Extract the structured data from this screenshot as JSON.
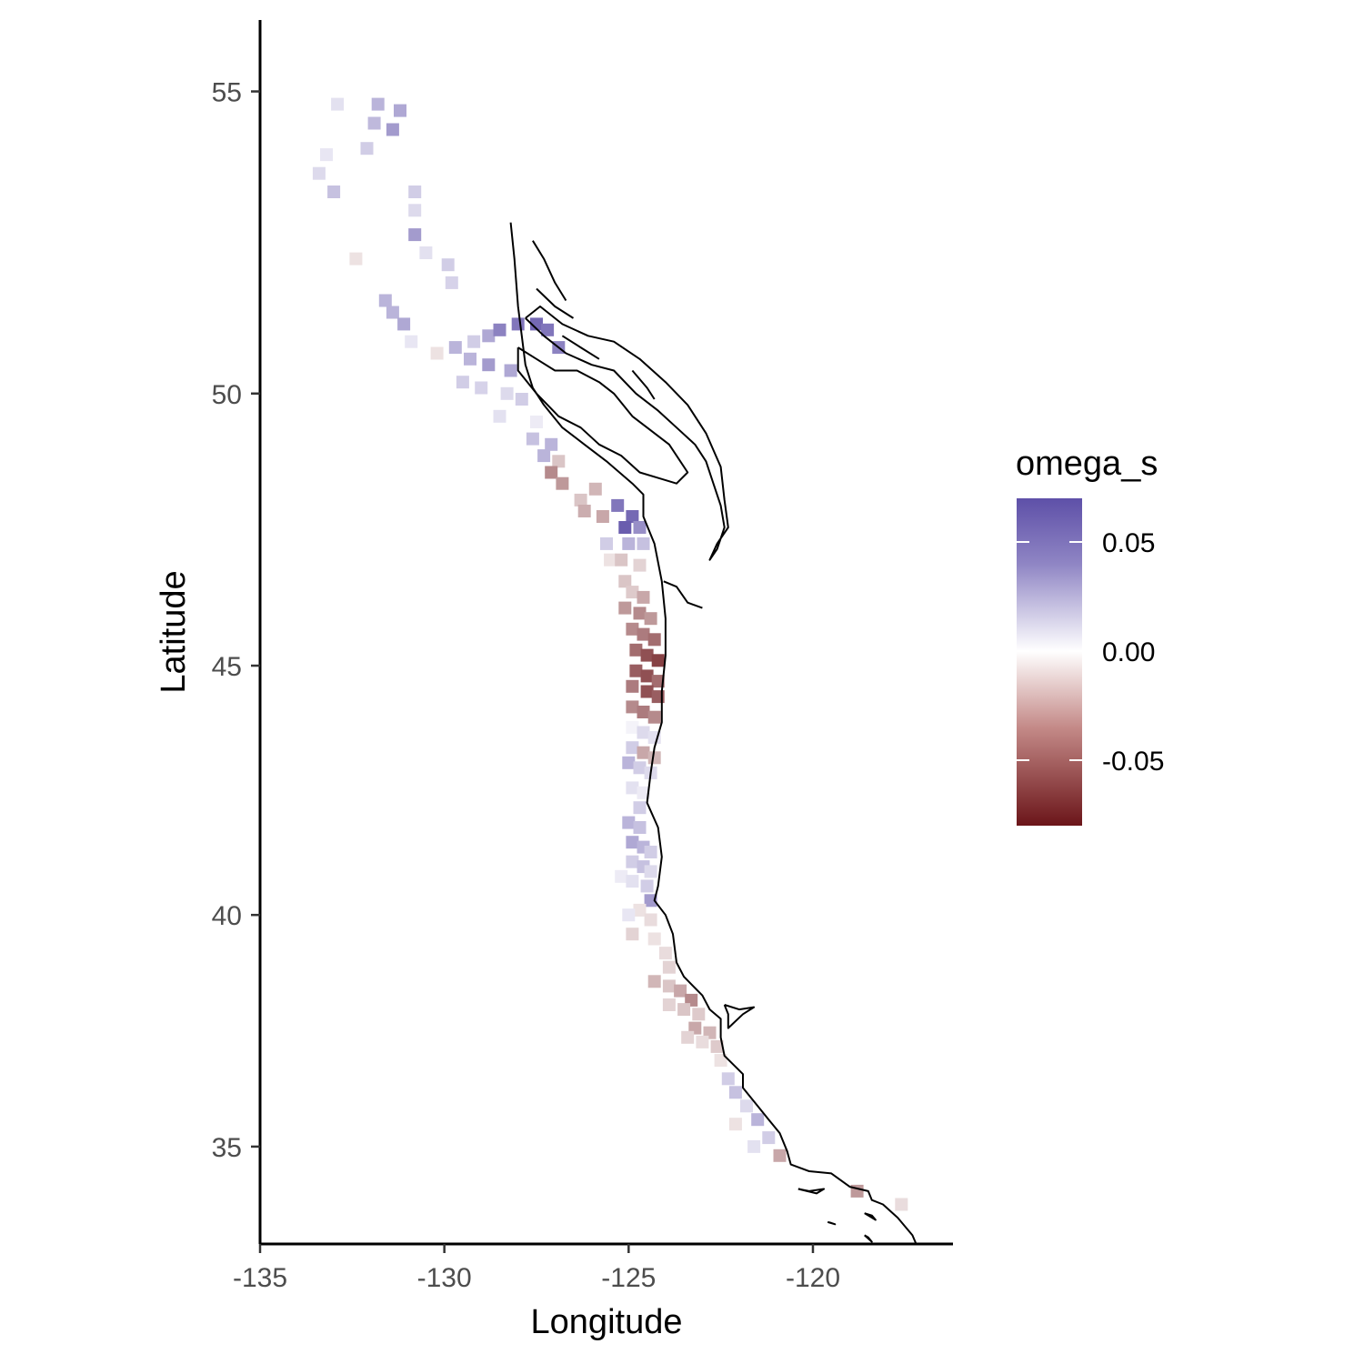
{
  "chart_data": {
    "type": "heatmap",
    "xlabel": "Longitude",
    "ylabel": "Latitude",
    "xlim": [
      -135,
      -116.2
    ],
    "ylim": [
      32.8,
      56.1
    ],
    "x_ticks": [
      -135,
      -130,
      -125,
      -120
    ],
    "x_tick_labels": [
      "-135",
      "-130",
      "-125",
      "-120"
    ],
    "y_ticks": [
      35,
      40,
      45,
      50,
      55
    ],
    "y_tick_labels": [
      "35",
      "40",
      "45",
      "50",
      "55"
    ],
    "grid": false,
    "legend": {
      "title": "omega_s",
      "position": "right",
      "min": -0.08,
      "max": 0.07,
      "breaks": [
        0.05,
        0.0,
        -0.05
      ],
      "break_labels": [
        "0.05",
        "0.00",
        "-0.05"
      ],
      "colors": {
        "high": "#5e50a8",
        "mid": "#ffffff",
        "low": "#6b1519"
      }
    },
    "coastline_color": "#000000",
    "cells": [
      {
        "lon": -132.9,
        "lat": 54.8,
        "v": 0.012
      },
      {
        "lon": -131.8,
        "lat": 54.8,
        "v": 0.03
      },
      {
        "lon": -131.2,
        "lat": 54.7,
        "v": 0.035
      },
      {
        "lon": -131.9,
        "lat": 54.5,
        "v": 0.028
      },
      {
        "lon": -131.4,
        "lat": 54.4,
        "v": 0.04
      },
      {
        "lon": -132.1,
        "lat": 54.1,
        "v": 0.02
      },
      {
        "lon": -133.2,
        "lat": 54.0,
        "v": 0.01
      },
      {
        "lon": -133.4,
        "lat": 53.7,
        "v": 0.015
      },
      {
        "lon": -133.0,
        "lat": 53.4,
        "v": 0.025
      },
      {
        "lon": -130.8,
        "lat": 53.4,
        "v": 0.02
      },
      {
        "lon": -130.8,
        "lat": 53.1,
        "v": 0.015
      },
      {
        "lon": -130.8,
        "lat": 52.7,
        "v": 0.04
      },
      {
        "lon": -130.5,
        "lat": 52.4,
        "v": 0.012
      },
      {
        "lon": -129.9,
        "lat": 52.2,
        "v": 0.02
      },
      {
        "lon": -129.8,
        "lat": 51.9,
        "v": 0.018
      },
      {
        "lon": -132.4,
        "lat": 52.3,
        "v": -0.01
      },
      {
        "lon": -131.6,
        "lat": 51.6,
        "v": 0.03
      },
      {
        "lon": -131.4,
        "lat": 51.4,
        "v": 0.03
      },
      {
        "lon": -131.1,
        "lat": 51.2,
        "v": 0.035
      },
      {
        "lon": -130.9,
        "lat": 50.9,
        "v": 0.01
      },
      {
        "lon": -130.2,
        "lat": 50.7,
        "v": -0.01
      },
      {
        "lon": -129.2,
        "lat": 50.9,
        "v": 0.02
      },
      {
        "lon": -128.8,
        "lat": 51.0,
        "v": 0.035
      },
      {
        "lon": -128.5,
        "lat": 51.1,
        "v": 0.05
      },
      {
        "lon": -128.0,
        "lat": 51.2,
        "v": 0.055
      },
      {
        "lon": -127.5,
        "lat": 51.2,
        "v": 0.06
      },
      {
        "lon": -127.2,
        "lat": 51.1,
        "v": 0.055
      },
      {
        "lon": -126.9,
        "lat": 50.8,
        "v": 0.05
      },
      {
        "lon": -129.7,
        "lat": 50.8,
        "v": 0.03
      },
      {
        "lon": -129.3,
        "lat": 50.6,
        "v": 0.03
      },
      {
        "lon": -128.8,
        "lat": 50.5,
        "v": 0.04
      },
      {
        "lon": -128.2,
        "lat": 50.4,
        "v": 0.035
      },
      {
        "lon": -129.5,
        "lat": 50.2,
        "v": 0.02
      },
      {
        "lon": -129.0,
        "lat": 50.1,
        "v": 0.018
      },
      {
        "lon": -128.3,
        "lat": 50.0,
        "v": 0.015
      },
      {
        "lon": -127.9,
        "lat": 49.9,
        "v": 0.02
      },
      {
        "lon": -128.5,
        "lat": 49.6,
        "v": 0.012
      },
      {
        "lon": -127.5,
        "lat": 49.5,
        "v": 0.008
      },
      {
        "lon": -127.6,
        "lat": 49.2,
        "v": 0.025
      },
      {
        "lon": -127.1,
        "lat": 49.1,
        "v": 0.03
      },
      {
        "lon": -127.3,
        "lat": 48.9,
        "v": 0.03
      },
      {
        "lon": -126.9,
        "lat": 48.8,
        "v": -0.02
      },
      {
        "lon": -127.1,
        "lat": 48.6,
        "v": -0.04
      },
      {
        "lon": -126.8,
        "lat": 48.4,
        "v": -0.035
      },
      {
        "lon": -126.3,
        "lat": 48.1,
        "v": -0.02
      },
      {
        "lon": -125.9,
        "lat": 48.3,
        "v": -0.025
      },
      {
        "lon": -126.2,
        "lat": 47.9,
        "v": -0.028
      },
      {
        "lon": -125.7,
        "lat": 47.8,
        "v": -0.03
      },
      {
        "lon": -125.3,
        "lat": 48.0,
        "v": 0.055
      },
      {
        "lon": -124.9,
        "lat": 47.8,
        "v": 0.06
      },
      {
        "lon": -125.1,
        "lat": 47.6,
        "v": 0.065
      },
      {
        "lon": -124.7,
        "lat": 47.6,
        "v": 0.045
      },
      {
        "lon": -125.6,
        "lat": 47.3,
        "v": 0.02
      },
      {
        "lon": -125.0,
        "lat": 47.3,
        "v": 0.03
      },
      {
        "lon": -124.6,
        "lat": 47.3,
        "v": 0.025
      },
      {
        "lon": -125.5,
        "lat": 47.0,
        "v": -0.01
      },
      {
        "lon": -125.2,
        "lat": 47.0,
        "v": -0.02
      },
      {
        "lon": -124.7,
        "lat": 46.9,
        "v": -0.015
      },
      {
        "lon": -125.1,
        "lat": 46.6,
        "v": -0.02
      },
      {
        "lon": -124.9,
        "lat": 46.4,
        "v": -0.018
      },
      {
        "lon": -124.6,
        "lat": 46.3,
        "v": -0.03
      },
      {
        "lon": -125.1,
        "lat": 46.1,
        "v": -0.035
      },
      {
        "lon": -124.7,
        "lat": 46.0,
        "v": -0.04
      },
      {
        "lon": -124.4,
        "lat": 45.9,
        "v": -0.035
      },
      {
        "lon": -124.9,
        "lat": 45.7,
        "v": -0.04
      },
      {
        "lon": -124.6,
        "lat": 45.6,
        "v": -0.045
      },
      {
        "lon": -124.3,
        "lat": 45.5,
        "v": -0.05
      },
      {
        "lon": -124.8,
        "lat": 45.3,
        "v": -0.05
      },
      {
        "lon": -124.5,
        "lat": 45.2,
        "v": -0.06
      },
      {
        "lon": -124.2,
        "lat": 45.1,
        "v": -0.065
      },
      {
        "lon": -124.8,
        "lat": 44.9,
        "v": -0.055
      },
      {
        "lon": -124.5,
        "lat": 44.8,
        "v": -0.06
      },
      {
        "lon": -124.2,
        "lat": 44.7,
        "v": -0.05
      },
      {
        "lon": -124.9,
        "lat": 44.6,
        "v": -0.045
      },
      {
        "lon": -124.5,
        "lat": 44.5,
        "v": -0.06
      },
      {
        "lon": -124.2,
        "lat": 44.4,
        "v": -0.055
      },
      {
        "lon": -124.9,
        "lat": 44.2,
        "v": -0.04
      },
      {
        "lon": -124.6,
        "lat": 44.1,
        "v": -0.045
      },
      {
        "lon": -124.3,
        "lat": 44.0,
        "v": -0.04
      },
      {
        "lon": -124.9,
        "lat": 43.8,
        "v": 0.005
      },
      {
        "lon": -124.6,
        "lat": 43.7,
        "v": 0.015
      },
      {
        "lon": -124.3,
        "lat": 43.6,
        "v": 0.012
      },
      {
        "lon": -124.9,
        "lat": 43.4,
        "v": 0.02
      },
      {
        "lon": -124.6,
        "lat": 43.3,
        "v": -0.03
      },
      {
        "lon": -124.3,
        "lat": 43.2,
        "v": -0.025
      },
      {
        "lon": -125.0,
        "lat": 43.1,
        "v": 0.03
      },
      {
        "lon": -124.7,
        "lat": 43.0,
        "v": 0.02
      },
      {
        "lon": -124.4,
        "lat": 42.9,
        "v": 0.015
      },
      {
        "lon": -124.9,
        "lat": 42.6,
        "v": 0.012
      },
      {
        "lon": -124.6,
        "lat": 42.5,
        "v": 0.008
      },
      {
        "lon": -124.7,
        "lat": 42.2,
        "v": 0.02
      },
      {
        "lon": -125.0,
        "lat": 41.9,
        "v": 0.03
      },
      {
        "lon": -124.7,
        "lat": 41.8,
        "v": 0.025
      },
      {
        "lon": -124.9,
        "lat": 41.5,
        "v": 0.035
      },
      {
        "lon": -124.6,
        "lat": 41.4,
        "v": 0.03
      },
      {
        "lon": -124.4,
        "lat": 41.3,
        "v": 0.02
      },
      {
        "lon": -124.9,
        "lat": 41.1,
        "v": 0.02
      },
      {
        "lon": -124.6,
        "lat": 41.0,
        "v": 0.025
      },
      {
        "lon": -124.4,
        "lat": 40.9,
        "v": 0.015
      },
      {
        "lon": -125.2,
        "lat": 40.8,
        "v": 0.008
      },
      {
        "lon": -124.9,
        "lat": 40.7,
        "v": 0.012
      },
      {
        "lon": -124.5,
        "lat": 40.6,
        "v": 0.02
      },
      {
        "lon": -124.4,
        "lat": 40.3,
        "v": 0.04
      },
      {
        "lon": -124.7,
        "lat": 40.1,
        "v": -0.01
      },
      {
        "lon": -125.0,
        "lat": 40.0,
        "v": 0.01
      },
      {
        "lon": -124.4,
        "lat": 39.9,
        "v": -0.012
      },
      {
        "lon": -124.9,
        "lat": 39.6,
        "v": -0.015
      },
      {
        "lon": -124.3,
        "lat": 39.5,
        "v": -0.01
      },
      {
        "lon": -124.0,
        "lat": 39.2,
        "v": -0.012
      },
      {
        "lon": -123.9,
        "lat": 38.9,
        "v": -0.015
      },
      {
        "lon": -124.3,
        "lat": 38.6,
        "v": -0.025
      },
      {
        "lon": -123.9,
        "lat": 38.5,
        "v": -0.02
      },
      {
        "lon": -123.6,
        "lat": 38.4,
        "v": -0.03
      },
      {
        "lon": -123.3,
        "lat": 38.2,
        "v": -0.04
      },
      {
        "lon": -123.9,
        "lat": 38.1,
        "v": -0.015
      },
      {
        "lon": -123.5,
        "lat": 38.0,
        "v": -0.02
      },
      {
        "lon": -123.1,
        "lat": 37.9,
        "v": -0.018
      },
      {
        "lon": -123.2,
        "lat": 37.6,
        "v": -0.03
      },
      {
        "lon": -122.8,
        "lat": 37.5,
        "v": -0.025
      },
      {
        "lon": -123.4,
        "lat": 37.4,
        "v": -0.015
      },
      {
        "lon": -123.0,
        "lat": 37.3,
        "v": -0.012
      },
      {
        "lon": -122.6,
        "lat": 37.2,
        "v": -0.018
      },
      {
        "lon": -122.5,
        "lat": 36.9,
        "v": -0.01
      },
      {
        "lon": -122.3,
        "lat": 36.5,
        "v": 0.02
      },
      {
        "lon": -122.1,
        "lat": 36.2,
        "v": 0.025
      },
      {
        "lon": -121.8,
        "lat": 35.9,
        "v": 0.015
      },
      {
        "lon": -121.5,
        "lat": 35.6,
        "v": 0.03
      },
      {
        "lon": -122.1,
        "lat": 35.5,
        "v": -0.01
      },
      {
        "lon": -121.2,
        "lat": 35.2,
        "v": 0.02
      },
      {
        "lon": -121.6,
        "lat": 35.0,
        "v": 0.012
      },
      {
        "lon": -120.9,
        "lat": 34.8,
        "v": -0.03
      },
      {
        "lon": -118.8,
        "lat": 34.0,
        "v": -0.035
      },
      {
        "lon": -117.6,
        "lat": 33.7,
        "v": -0.012
      }
    ],
    "coastline": [
      [
        [
          -128.2,
          52.9
        ],
        [
          -128.1,
          52.3
        ],
        [
          -128.0,
          51.5
        ],
        [
          -127.9,
          51.0
        ],
        [
          -127.8,
          50.5
        ],
        [
          -127.6,
          50.1
        ],
        [
          -127.3,
          49.8
        ],
        [
          -126.8,
          49.4
        ],
        [
          -126.2,
          49.1
        ],
        [
          -125.6,
          48.8
        ],
        [
          -124.9,
          48.4
        ],
        [
          -124.6,
          48.2
        ],
        [
          -124.6,
          47.8
        ],
        [
          -124.3,
          47.3
        ],
        [
          -124.1,
          46.6
        ],
        [
          -124.0,
          45.9
        ],
        [
          -124.0,
          45.2
        ],
        [
          -124.1,
          44.5
        ],
        [
          -124.1,
          43.9
        ],
        [
          -124.3,
          43.4
        ],
        [
          -124.4,
          42.9
        ],
        [
          -124.5,
          42.3
        ],
        [
          -124.2,
          41.8
        ],
        [
          -124.1,
          41.2
        ],
        [
          -124.2,
          40.6
        ],
        [
          -124.3,
          40.3
        ],
        [
          -124.0,
          40.0
        ],
        [
          -123.8,
          39.6
        ],
        [
          -123.7,
          39.0
        ],
        [
          -123.5,
          38.7
        ],
        [
          -123.0,
          38.3
        ],
        [
          -122.8,
          38.0
        ],
        [
          -122.5,
          37.8
        ],
        [
          -122.5,
          37.4
        ],
        [
          -122.4,
          37.0
        ],
        [
          -121.9,
          36.6
        ],
        [
          -121.9,
          36.3
        ],
        [
          -121.5,
          35.9
        ],
        [
          -121.2,
          35.6
        ],
        [
          -120.9,
          35.3
        ],
        [
          -120.7,
          34.9
        ],
        [
          -120.6,
          34.6
        ],
        [
          -120.1,
          34.45
        ],
        [
          -119.5,
          34.4
        ],
        [
          -119.0,
          34.1
        ],
        [
          -118.5,
          34.0
        ],
        [
          -118.4,
          33.8
        ],
        [
          -118.1,
          33.7
        ],
        [
          -117.7,
          33.4
        ],
        [
          -117.3,
          33.0
        ],
        [
          -117.2,
          32.8
        ]
      ],
      [
        [
          -128.0,
          50.8
        ],
        [
          -127.5,
          50.6
        ],
        [
          -127.0,
          50.4
        ],
        [
          -126.4,
          50.4
        ],
        [
          -125.8,
          50.2
        ],
        [
          -125.4,
          50.0
        ],
        [
          -124.9,
          49.6
        ],
        [
          -124.5,
          49.4
        ],
        [
          -123.9,
          49.1
        ],
        [
          -123.4,
          48.6
        ],
        [
          -123.7,
          48.4
        ],
        [
          -124.2,
          48.5
        ],
        [
          -124.7,
          48.6
        ],
        [
          -125.2,
          48.9
        ],
        [
          -125.8,
          49.1
        ],
        [
          -126.3,
          49.4
        ],
        [
          -126.9,
          49.6
        ],
        [
          -127.5,
          50.0
        ],
        [
          -128.0,
          50.4
        ],
        [
          -128.0,
          50.8
        ]
      ],
      [
        [
          -127.8,
          51.3
        ],
        [
          -127.3,
          51.0
        ],
        [
          -126.7,
          50.7
        ],
        [
          -126.0,
          50.5
        ],
        [
          -125.4,
          50.4
        ],
        [
          -124.8,
          50.0
        ],
        [
          -124.2,
          49.7
        ],
        [
          -123.7,
          49.4
        ],
        [
          -123.2,
          49.1
        ],
        [
          -122.9,
          48.8
        ],
        [
          -122.7,
          48.4
        ],
        [
          -122.5,
          48.0
        ],
        [
          -122.4,
          47.6
        ],
        [
          -122.6,
          47.2
        ],
        [
          -122.8,
          47.0
        ],
        [
          -122.6,
          47.3
        ],
        [
          -122.3,
          47.6
        ],
        [
          -122.4,
          48.1
        ],
        [
          -122.5,
          48.7
        ],
        [
          -122.9,
          49.3
        ],
        [
          -123.4,
          49.8
        ],
        [
          -124.0,
          50.2
        ],
        [
          -124.7,
          50.6
        ],
        [
          -125.4,
          50.9
        ],
        [
          -126.1,
          51.0
        ],
        [
          -126.8,
          51.2
        ],
        [
          -127.4,
          51.5
        ],
        [
          -127.8,
          51.3
        ]
      ],
      [
        [
          -127.6,
          52.6
        ],
        [
          -127.3,
          52.3
        ],
        [
          -127.0,
          51.9
        ],
        [
          -126.7,
          51.6
        ]
      ],
      [
        [
          -127.5,
          51.8
        ],
        [
          -127.0,
          51.5
        ],
        [
          -126.5,
          51.3
        ]
      ],
      [
        [
          -126.8,
          51.0
        ],
        [
          -126.3,
          50.8
        ],
        [
          -125.8,
          50.6
        ]
      ],
      [
        [
          -124.9,
          50.4
        ],
        [
          -124.5,
          50.1
        ],
        [
          -124.3,
          49.9
        ]
      ],
      [
        [
          -124.05,
          46.6
        ],
        [
          -123.7,
          46.5
        ],
        [
          -123.4,
          46.2
        ],
        [
          -123.0,
          46.1
        ]
      ],
      [
        [
          -122.4,
          38.1
        ],
        [
          -122.0,
          38.0
        ],
        [
          -121.6,
          38.05
        ],
        [
          -121.9,
          37.9
        ],
        [
          -122.3,
          37.6
        ],
        [
          -122.3,
          37.9
        ],
        [
          -122.4,
          38.1
        ]
      ],
      [
        [
          -120.4,
          34.05
        ],
        [
          -120.1,
          34.0
        ],
        [
          -119.7,
          34.05
        ],
        [
          -119.9,
          33.95
        ],
        [
          -120.4,
          34.05
        ]
      ],
      [
        [
          -118.6,
          33.5
        ],
        [
          -118.3,
          33.35
        ],
        [
          -118.4,
          33.45
        ],
        [
          -118.6,
          33.5
        ]
      ],
      [
        [
          -118.6,
          33.0
        ],
        [
          -118.4,
          32.85
        ],
        [
          -118.5,
          32.95
        ],
        [
          -118.6,
          33.0
        ]
      ],
      [
        [
          -119.6,
          33.3
        ],
        [
          -119.4,
          33.25
        ],
        [
          -119.5,
          33.28
        ],
        [
          -119.6,
          33.3
        ]
      ]
    ]
  }
}
